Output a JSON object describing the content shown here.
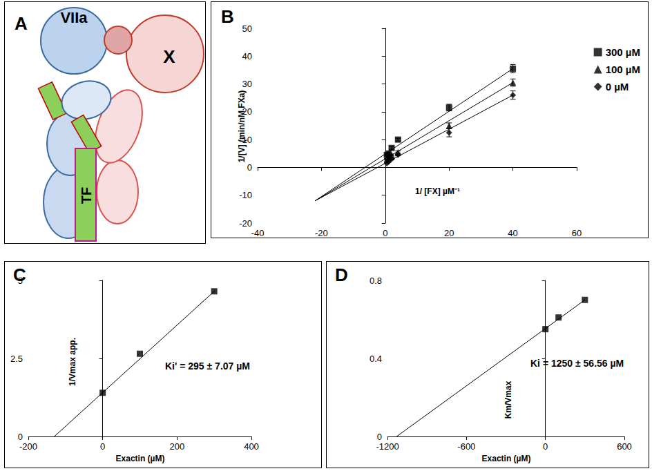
{
  "diagram": {
    "panel_label": "A",
    "nodes": [
      {
        "label": "VIIa"
      },
      {
        "label": "X"
      },
      {
        "label": "TF"
      }
    ]
  },
  "chart_data": [
    {
      "panel_label": "B",
      "type": "scatter",
      "x_label": "1/ [FX] µM⁻¹",
      "y_label": "1/[V] (min/nM FXa)",
      "xlim": [
        -40,
        60
      ],
      "xticks": [
        -40,
        -20,
        0,
        20,
        40,
        60
      ],
      "ylim": [
        -20,
        50
      ],
      "yticks": [
        -20,
        -10,
        0,
        10,
        20,
        30,
        40,
        50
      ],
      "grid": false,
      "legend": "top right",
      "series": [
        {
          "name": "300 µM",
          "color": "#000000",
          "marker": "square",
          "x": [
            0.5,
            1,
            2,
            4,
            20,
            40
          ],
          "values": [
            4.5,
            5,
            7,
            10,
            21.5,
            35.5
          ],
          "errors": [
            0.3,
            0.4,
            0.5,
            0.5,
            1.2,
            1.5
          ],
          "fit_x": [
            -22,
            40
          ],
          "fit_y": [
            -12,
            35.5
          ]
        },
        {
          "name": "100 µM",
          "color": "#000000",
          "marker": "triangle",
          "x": [
            0.5,
            1,
            2,
            4,
            20,
            40
          ],
          "values": [
            3,
            3.5,
            4.5,
            5.5,
            15,
            30.5
          ],
          "errors": [
            0.2,
            0.3,
            0.3,
            0.4,
            1,
            1.3
          ],
          "fit_x": [
            -22,
            40
          ],
          "fit_y": [
            -12,
            30.5
          ]
        },
        {
          "name": "0 µM",
          "color": "#000000",
          "marker": "diamond",
          "x": [
            0.5,
            1,
            2,
            4,
            20,
            40
          ],
          "values": [
            1.5,
            2,
            3,
            4.5,
            12.5,
            26
          ],
          "errors": [
            0.2,
            0.2,
            0.3,
            0.3,
            1.5,
            1.5
          ],
          "fit_x": [
            -22,
            40
          ],
          "fit_y": [
            -12,
            26
          ]
        }
      ]
    },
    {
      "panel_label": "C",
      "type": "scatter",
      "x_label": "Exactin (µM)",
      "y_label": "1/Vmax app.",
      "annotation": "Ki' = 295 ± 7.07 µM",
      "xlim": [
        -200,
        400
      ],
      "xticks": [
        -200,
        0,
        200,
        400
      ],
      "ylim": [
        0,
        5
      ],
      "yticks": [
        0,
        2.5,
        5
      ],
      "grid": false,
      "series": [
        {
          "color": "#000000",
          "marker": "square",
          "x": [
            0,
            100,
            300
          ],
          "values": [
            1.4,
            2.65,
            4.65
          ],
          "fit_x": [
            -130,
            300
          ],
          "fit_y": [
            0,
            4.65
          ]
        }
      ]
    },
    {
      "panel_label": "D",
      "type": "scatter",
      "x_label": "Exactin (µM)",
      "y_label": "Km/Vmax",
      "annotation": "Ki = 1250 ± 56.56 µM",
      "xlim": [
        -1200,
        600
      ],
      "xticks": [
        -1200,
        -600,
        0,
        600
      ],
      "ylim": [
        0,
        0.8
      ],
      "yticks": [
        0,
        0.4,
        0.8
      ],
      "grid": false,
      "series": [
        {
          "color": "#000000",
          "marker": "square",
          "x": [
            0,
            100,
            300
          ],
          "values": [
            0.55,
            0.61,
            0.7
          ],
          "fit_x": [
            -1130,
            300
          ],
          "fit_y": [
            0,
            0.7
          ]
        }
      ]
    }
  ]
}
